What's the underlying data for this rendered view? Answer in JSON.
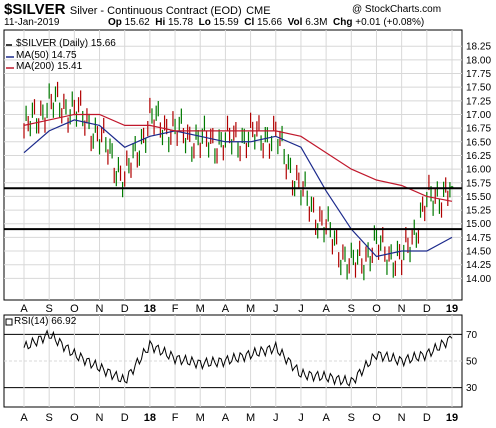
{
  "header": {
    "symbol": "$SILVER",
    "description": "Silver - Continuous Contract (EOD)",
    "exchange": "CME",
    "copyright": "@ StockCharts.com",
    "date": "11-Jan-2019",
    "open_label": "Op",
    "open": "15.62",
    "high_label": "Hi",
    "high": "15.78",
    "low_label": "Lo",
    "low": "15.59",
    "close_label": "Cl",
    "close": "15.66",
    "volume_label": "Vol",
    "volume": "6.3M",
    "change_label": "Chg",
    "change": "+0.01 (+0.08%)"
  },
  "legend": {
    "price": "$SILVER (Daily) 15.66",
    "ma50": "MA(50) 14.75",
    "ma200": "MA(200) 15.41"
  },
  "rsi_label": "RSI(14) 66.92",
  "colors": {
    "price_up": "#007a00",
    "price_down": "#b00000",
    "ma50": "#1c2a8c",
    "ma200": "#c0182c",
    "grid": "#d8d8d8",
    "rsi_line": "#000000"
  },
  "chart_data": [
    {
      "type": "line",
      "title": "$SILVER (Daily) 15.66",
      "x": [
        "A",
        "S",
        "O",
        "N",
        "D",
        "18",
        "F",
        "M",
        "A",
        "M",
        "J",
        "J",
        "A",
        "S",
        "O",
        "N",
        "D",
        "19"
      ],
      "ylim": [
        13.75,
        18.4
      ],
      "yticks": [
        "18.25",
        "18.00",
        "17.75",
        "17.50",
        "17.25",
        "17.00",
        "16.75",
        "16.50",
        "16.25",
        "16.00",
        "15.75",
        "15.50",
        "15.25",
        "15.00",
        "14.75",
        "14.50",
        "14.25",
        "14.00"
      ],
      "horizontal_lines": [
        15.65,
        14.9
      ],
      "series": [
        {
          "name": "$SILVER (Daily) 15.66",
          "values": [
            16.7,
            17.2,
            17.1,
            16.6,
            15.8,
            16.9,
            16.7,
            16.5,
            16.5,
            16.6,
            16.6,
            15.6,
            14.9,
            14.2,
            14.6,
            14.3,
            15.4,
            15.66
          ]
        },
        {
          "name": "MA(50) 14.75",
          "values": [
            16.3,
            16.7,
            16.9,
            16.8,
            16.4,
            16.6,
            16.7,
            16.6,
            16.5,
            16.5,
            16.6,
            16.4,
            15.6,
            14.9,
            14.4,
            14.5,
            14.5,
            14.75
          ]
        },
        {
          "name": "MA(200) 15.41",
          "values": [
            16.8,
            16.9,
            17.0,
            17.0,
            16.8,
            16.8,
            16.7,
            16.7,
            16.7,
            16.7,
            16.7,
            16.6,
            16.3,
            16.0,
            15.8,
            15.7,
            15.5,
            15.41
          ]
        }
      ],
      "grid": true
    },
    {
      "type": "line",
      "title": "RSI(14) 66.92",
      "x": [
        "A",
        "S",
        "O",
        "N",
        "D",
        "18",
        "F",
        "M",
        "A",
        "M",
        "J",
        "J",
        "A",
        "S",
        "O",
        "N",
        "D",
        "19"
      ],
      "ylim": [
        20,
        80
      ],
      "yticks": [
        "70",
        "50",
        "30"
      ],
      "horizontal_lines": [
        70,
        30
      ],
      "series": [
        {
          "name": "RSI(14) 66.92",
          "values": [
            60,
            70,
            55,
            45,
            35,
            62,
            52,
            48,
            50,
            55,
            60,
            40,
            38,
            34,
            55,
            50,
            55,
            67
          ]
        }
      ],
      "grid": true
    }
  ]
}
